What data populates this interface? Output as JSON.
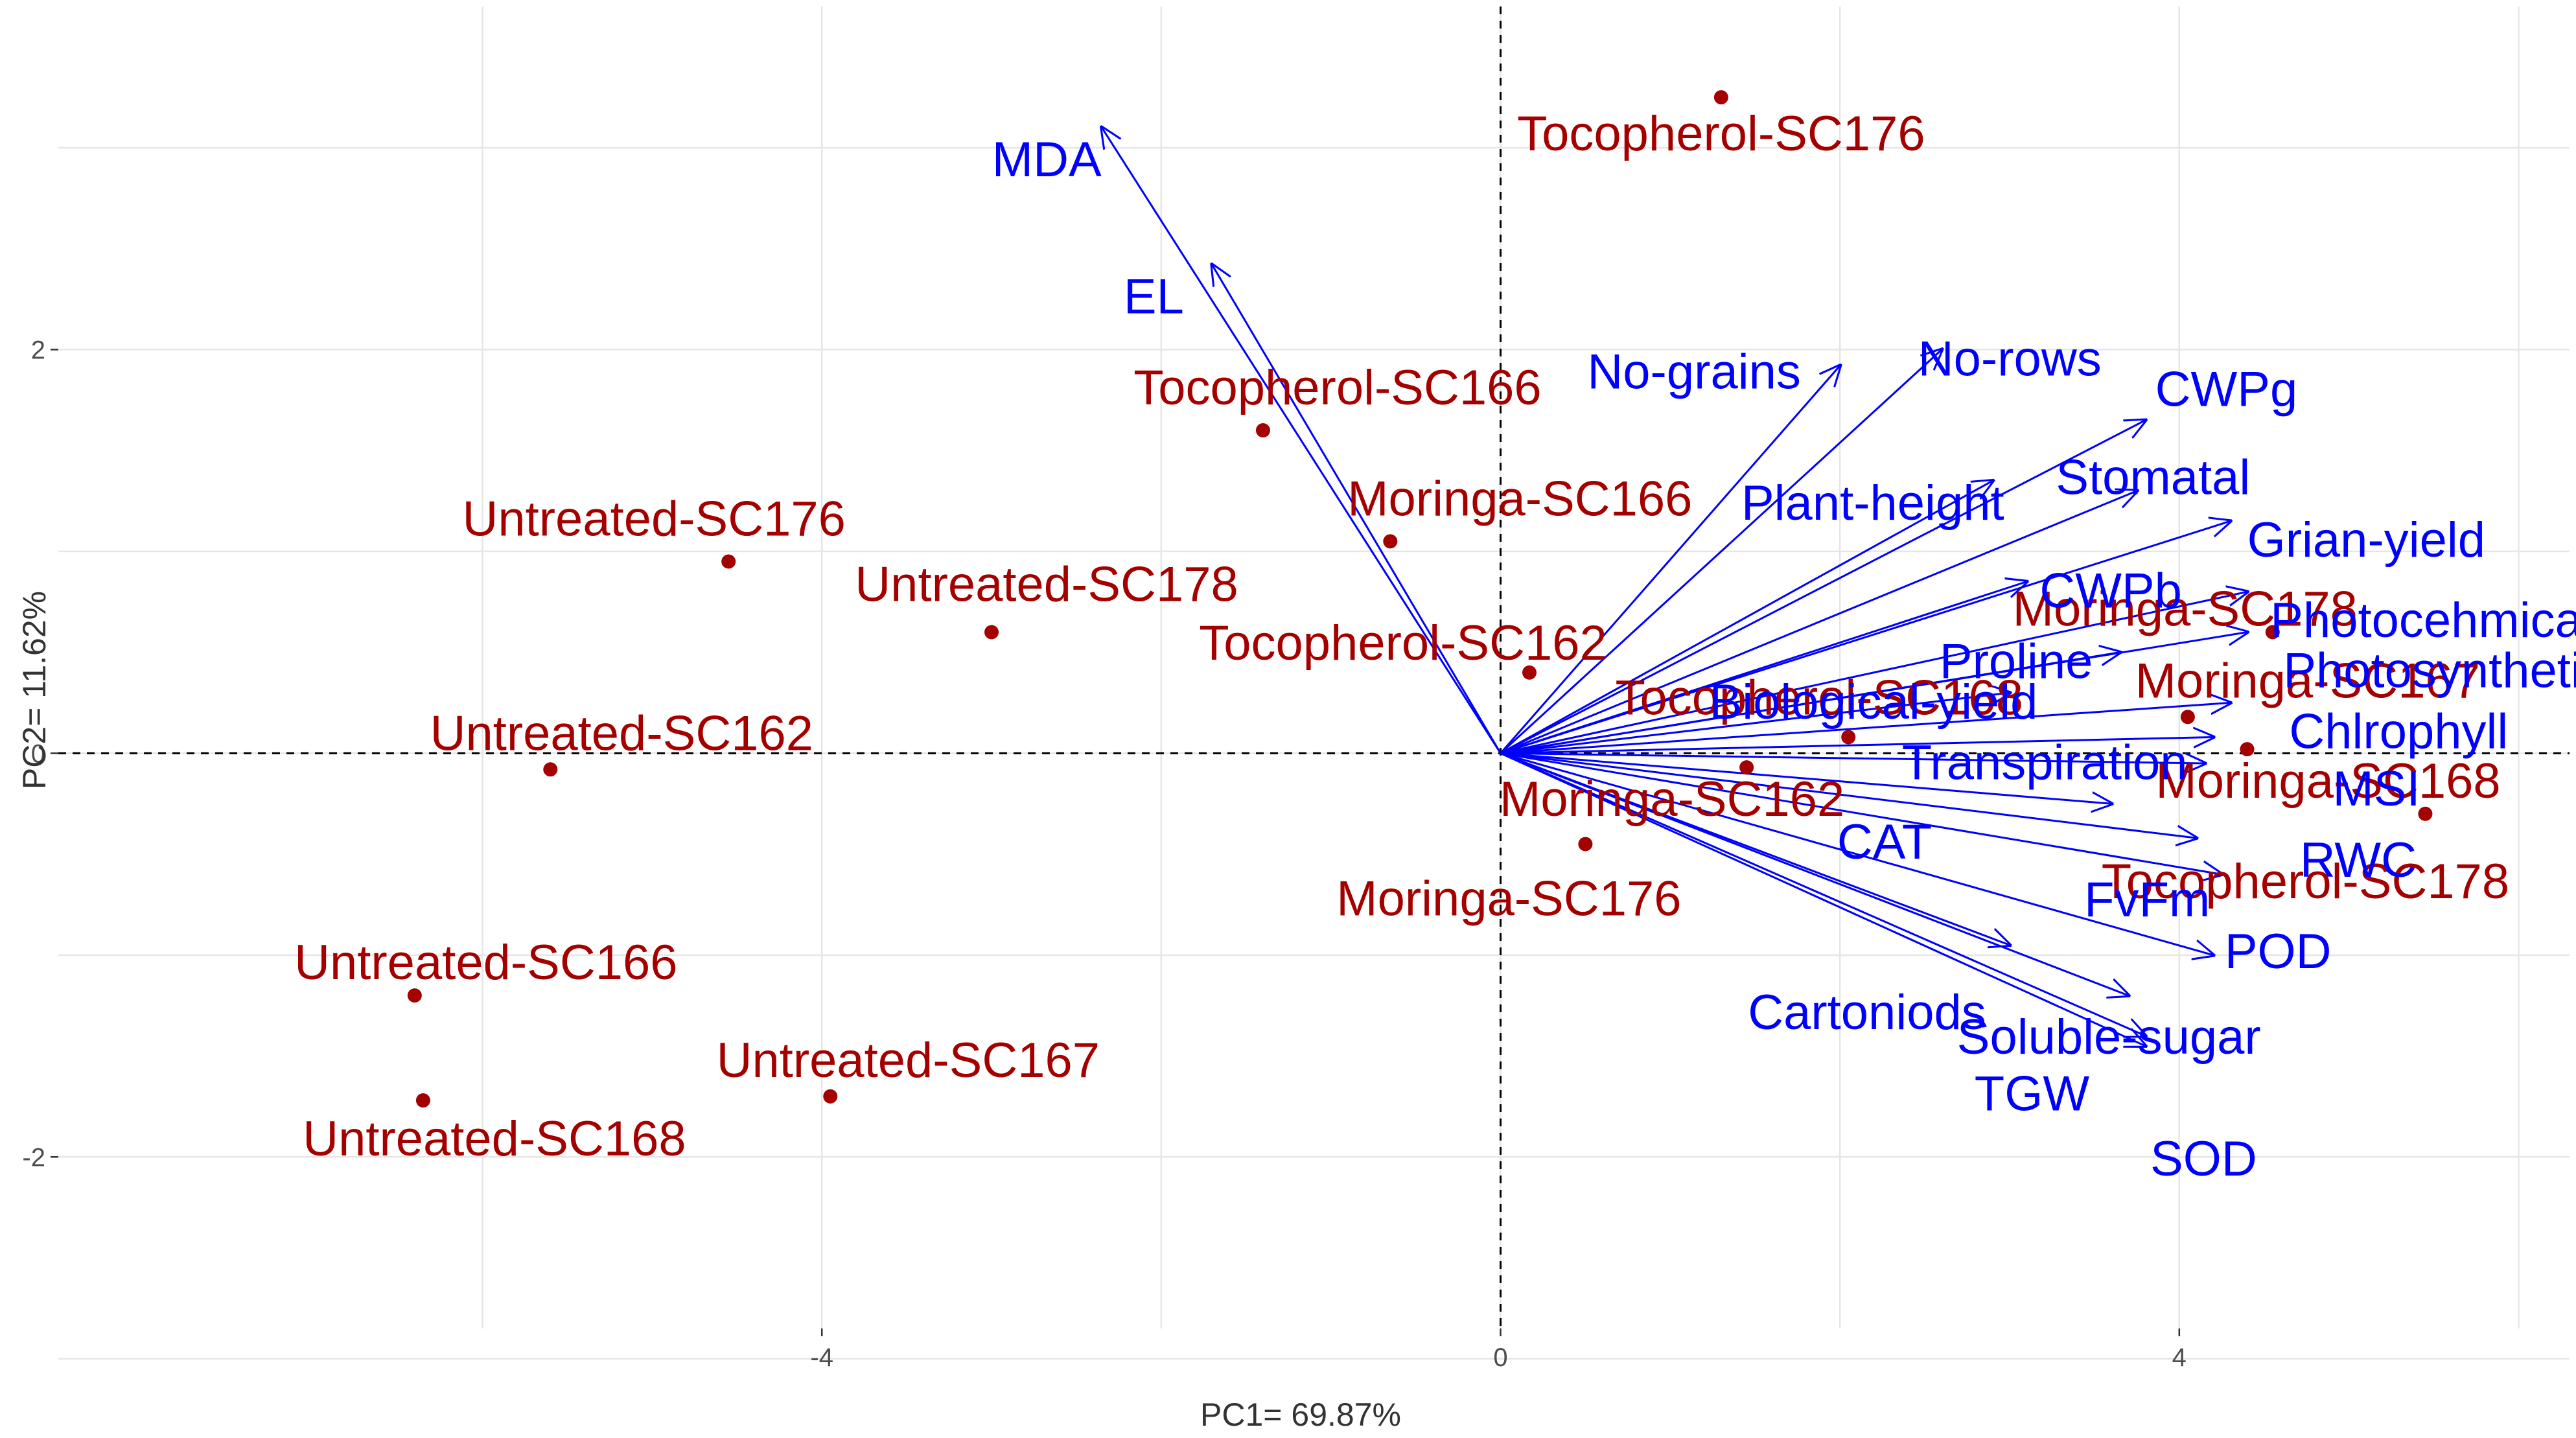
{
  "chart_data": {
    "type": "scatter",
    "subtype": "pca-biplot",
    "xlabel": "PC1= 69.87%",
    "ylabel": "PC2= 11.62%",
    "xlim": [
      -8.5,
      6.3
    ],
    "ylim": [
      -2.85,
      3.7
    ],
    "xticks": [
      -4,
      0,
      4
    ],
    "yticks": [
      -2,
      0,
      2
    ],
    "grid": true,
    "reference_lines": {
      "x": 0,
      "y": 0
    },
    "colors": {
      "observations": "#a50000",
      "variables": "#0000ff"
    },
    "observations": [
      {
        "label": "Tocopherol-SC176",
        "x": 1.3,
        "y": 3.25
      },
      {
        "label": "Tocopherol-SC166",
        "x": -1.4,
        "y": 1.6
      },
      {
        "label": "Moringa-SC166",
        "x": -0.65,
        "y": 1.05
      },
      {
        "label": "Untreated-SC176",
        "x": -4.55,
        "y": 0.95
      },
      {
        "label": "Untreated-SC178",
        "x": -3.0,
        "y": 0.6
      },
      {
        "label": "Tocopherol-SC162",
        "x": 0.17,
        "y": 0.4
      },
      {
        "label": "Untreated-SC162",
        "x": -5.6,
        "y": -0.08
      },
      {
        "label": "Tocopherol-SC168",
        "x": 2.05,
        "y": 0.08
      },
      {
        "label": "Moringa-SC162",
        "x": 1.45,
        "y": -0.07
      },
      {
        "label": "Moringa-SC176",
        "x": 0.5,
        "y": -0.45
      },
      {
        "label": "Moringa-SC178",
        "x": 4.55,
        "y": 0.6
      },
      {
        "label": "Moringa-SC167",
        "x": 4.05,
        "y": 0.18
      },
      {
        "label": "Moringa-SC168",
        "x": 4.4,
        "y": 0.02
      },
      {
        "label": "Tocopherol-SC178",
        "x": 5.45,
        "y": -0.3
      },
      {
        "label": "Untreated-SC166",
        "x": -6.4,
        "y": -1.2
      },
      {
        "label": "Untreated-SC167",
        "x": -3.95,
        "y": -1.7
      },
      {
        "label": "Untreated-SC168",
        "x": -6.35,
        "y": -1.72
      }
    ],
    "variables": [
      {
        "label": "MDA",
        "x": -2.35,
        "y": 3.1
      },
      {
        "label": "EL",
        "x": -1.7,
        "y": 2.42
      },
      {
        "label": "No-grains",
        "x": 2.0,
        "y": 1.92
      },
      {
        "label": "No-rows",
        "x": 2.6,
        "y": 2.0
      },
      {
        "label": "Plant-height",
        "x": 2.9,
        "y": 1.35
      },
      {
        "label": "CWPg",
        "x": 3.8,
        "y": 1.65
      },
      {
        "label": "Stomatal",
        "x": 3.75,
        "y": 1.3
      },
      {
        "label": "Grian-yield",
        "x": 4.3,
        "y": 1.15
      },
      {
        "label": "CWPb",
        "x": 3.1,
        "y": 0.85
      },
      {
        "label": "Photocehmical",
        "x": 4.4,
        "y": 0.8
      },
      {
        "label": "Photosynthetic",
        "x": 4.4,
        "y": 0.6
      },
      {
        "label": "Proline",
        "x": 3.65,
        "y": 0.5
      },
      {
        "label": "Biological-yield",
        "x": 3.0,
        "y": 0.3
      },
      {
        "label": "Chlrophyll",
        "x": 4.3,
        "y": 0.25
      },
      {
        "label": "Transpiration",
        "x": 4.2,
        "y": 0.08
      },
      {
        "label": "MSI",
        "x": 4.15,
        "y": -0.05
      },
      {
        "label": "CAT",
        "x": 3.6,
        "y": -0.25
      },
      {
        "label": "RWC",
        "x": 4.1,
        "y": -0.42
      },
      {
        "label": "FvFm",
        "x": 4.25,
        "y": -0.6
      },
      {
        "label": "POD",
        "x": 4.2,
        "y": -1.0
      },
      {
        "label": "Cartoniods",
        "x": 3.0,
        "y": -0.95
      },
      {
        "label": "Soluble-sugar",
        "x": 3.7,
        "y": -1.2
      },
      {
        "label": "TGW",
        "x": 3.8,
        "y": -1.4
      },
      {
        "label": "SOD",
        "x": 3.8,
        "y": -1.45
      }
    ]
  }
}
